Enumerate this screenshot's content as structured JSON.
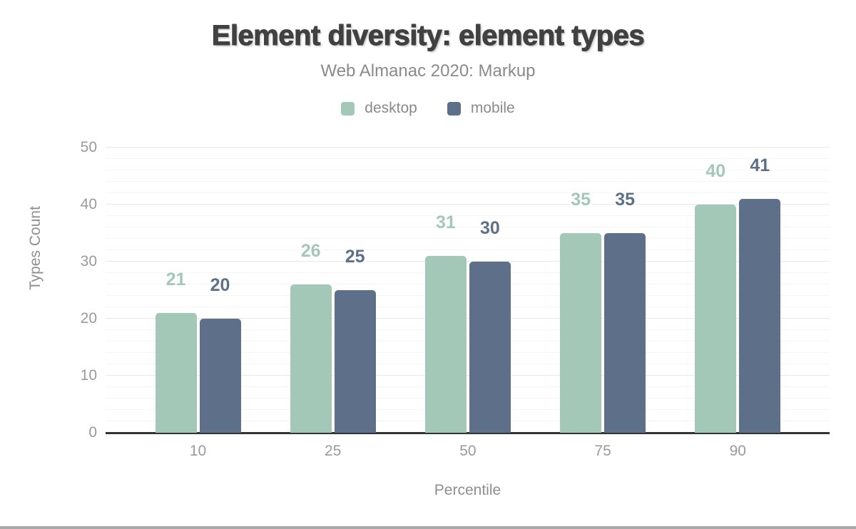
{
  "header": {
    "title": "Element diversity: element types",
    "subtitle": "Web Almanac 2020: Markup"
  },
  "legend": {
    "items": [
      {
        "label": "desktop",
        "color": "#a3c8b7"
      },
      {
        "label": "mobile",
        "color": "#5e7089"
      }
    ]
  },
  "chart_data": {
    "type": "bar",
    "title": "Element diversity: element types",
    "subtitle": "Web Almanac 2020: Markup",
    "categories": [
      "10",
      "25",
      "50",
      "75",
      "90"
    ],
    "series": [
      {
        "name": "desktop",
        "color": "#a3c8b7",
        "values": [
          21,
          26,
          31,
          35,
          40
        ]
      },
      {
        "name": "mobile",
        "color": "#5e7089",
        "values": [
          20,
          25,
          30,
          35,
          41
        ]
      }
    ],
    "xlabel": "Percentile",
    "ylabel": "Types Count",
    "ylim": [
      0,
      50
    ],
    "yticks": [
      0,
      10,
      20,
      30,
      40,
      50
    ],
    "minor_grid_step": 2,
    "grid": "horizontal",
    "legend_position": "top",
    "data_labels": true
  }
}
